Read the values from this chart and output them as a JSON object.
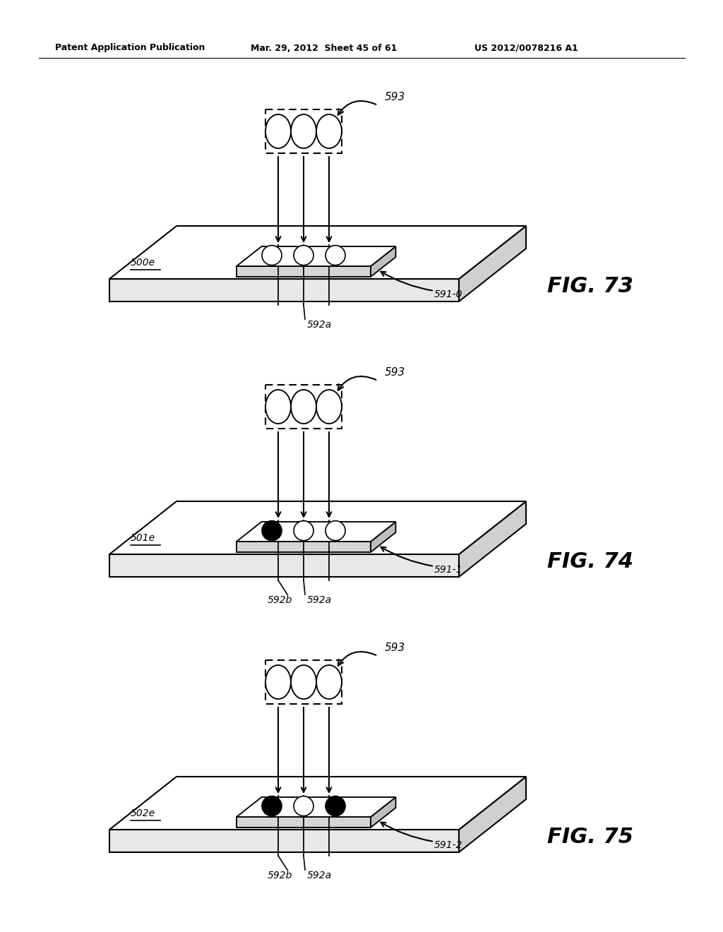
{
  "header_left": "Patent Application Publication",
  "header_mid": "Mar. 29, 2012  Sheet 45 of 61",
  "header_right": "US 2012/0078216 A1",
  "background_color": "#ffffff",
  "line_color": "#000000",
  "figures": [
    {
      "fig_label": "FIG. 73",
      "device_label": "500e",
      "component_label": "591-0",
      "label_592a": "592a",
      "label_592b": null,
      "label_593": "593",
      "has_592b": false,
      "filled_circles": []
    },
    {
      "fig_label": "FIG. 74",
      "device_label": "501e",
      "component_label": "591-1",
      "label_592a": "592a",
      "label_592b": "592b",
      "label_593": "593",
      "has_592b": true,
      "filled_circles": [
        0
      ]
    },
    {
      "fig_label": "FIG. 75",
      "device_label": "502e",
      "component_label": "591-2",
      "label_592a": "592a",
      "label_592b": "592b",
      "label_593": "593",
      "has_592b": true,
      "filled_circles": [
        0,
        2
      ]
    }
  ]
}
